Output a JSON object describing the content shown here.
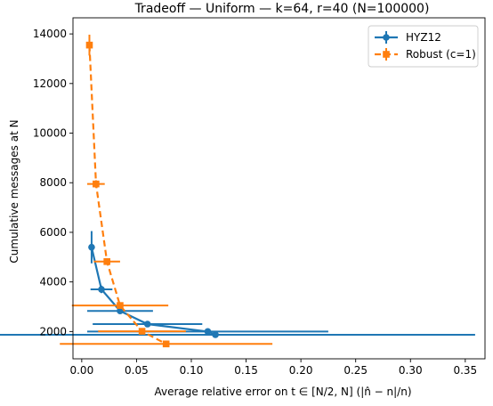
{
  "chart_data": {
    "type": "scatter",
    "title": "Tradeoff — Uniform — k=64, r=40 (N=100000)",
    "xlabel": "Average relative error on t ∈ [N/2, N]  (|n̂ − n|/n)",
    "ylabel": "Cumulative messages at N",
    "xlim": [
      -0.008,
      0.368
    ],
    "ylim": [
      900,
      14650
    ],
    "xticks": [
      0.0,
      0.05,
      0.1,
      0.15,
      0.2,
      0.25,
      0.3,
      0.35
    ],
    "xtick_labels": [
      "0.00",
      "0.05",
      "0.10",
      "0.15",
      "0.20",
      "0.25",
      "0.30",
      "0.35"
    ],
    "yticks": [
      2000,
      4000,
      6000,
      8000,
      10000,
      12000,
      14000
    ],
    "ytick_labels": [
      "2000",
      "4000",
      "6000",
      "8000",
      "10000",
      "12000",
      "14000"
    ],
    "grid": false,
    "legend_position": "upper right",
    "series": [
      {
        "name": "HYZ12",
        "color": "#1f77b4",
        "line_style": "solid",
        "marker": "circle",
        "points": [
          {
            "x": 0.009,
            "y": 5400,
            "xerr": 0.002,
            "yerr": 650
          },
          {
            "x": 0.018,
            "y": 3700,
            "xerr": 0.01,
            "yerr": 150
          },
          {
            "x": 0.035,
            "y": 2830,
            "xerr": 0.03,
            "yerr": 100
          },
          {
            "x": 0.06,
            "y": 2300,
            "xerr": 0.05,
            "yerr": 60
          },
          {
            "x": 0.115,
            "y": 2000,
            "xerr": 0.11,
            "yerr": 40
          },
          {
            "x": 0.122,
            "y": 1870,
            "xerr": 0.237,
            "yerr": 30
          }
        ]
      },
      {
        "name": "Robust (c=1)",
        "color": "#ff7f0e",
        "line_style": "dashed",
        "marker": "square",
        "points": [
          {
            "x": 0.007,
            "y": 13550,
            "xerr": 0.001,
            "yerr": 420
          },
          {
            "x": 0.013,
            "y": 7950,
            "xerr": 0.008,
            "yerr": 150
          },
          {
            "x": 0.023,
            "y": 4820,
            "xerr": 0.012,
            "yerr": 100
          },
          {
            "x": 0.035,
            "y": 3050,
            "xerr": 0.044,
            "yerr": 60
          },
          {
            "x": 0.055,
            "y": 2010,
            "xerr": 0.04,
            "yerr": 40
          },
          {
            "x": 0.077,
            "y": 1500,
            "xerr": 0.097,
            "yerr": 30
          }
        ]
      }
    ]
  }
}
